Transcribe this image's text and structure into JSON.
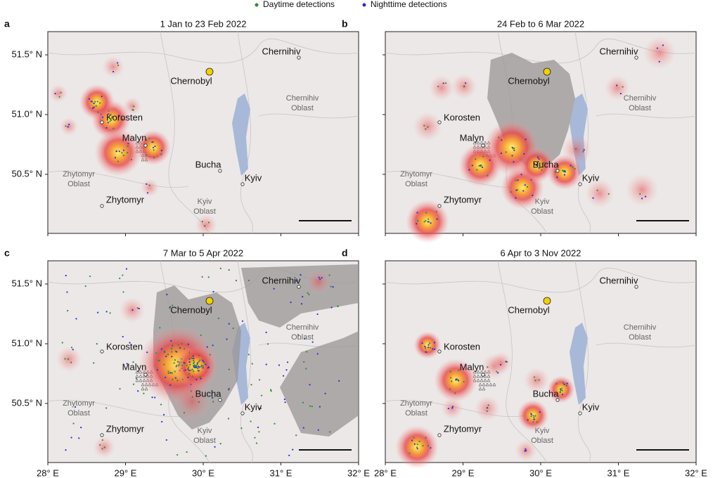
{
  "legend": [
    {
      "label": "Daytime detections",
      "color": "#2e8b2e"
    },
    {
      "label": "Nighttime detections",
      "color": "#2b2bd6"
    }
  ],
  "panels": [
    {
      "label": "a",
      "title": "1 Jan to 23 Feb 2022"
    },
    {
      "label": "b",
      "title": "24 Feb to 6 Mar 2022"
    },
    {
      "label": "c",
      "title": "7 Mar to 5 Apr 2022"
    },
    {
      "label": "d",
      "title": "6 Apr to 3 Nov 2022"
    }
  ],
  "lat_ticks": [
    "51.5° N",
    "51.0° N",
    "50.5° N"
  ],
  "lon_ticks": [
    "28° E",
    "29° E",
    "30° E",
    "31° E",
    "32° E"
  ],
  "places": [
    {
      "lines": [
        "Chernihiv"
      ]
    },
    {
      "lines": [
        "Chernobyl"
      ]
    },
    {
      "lines": [
        "Chernihiv",
        "Oblast"
      ]
    },
    {
      "lines": [
        "Korosten"
      ]
    },
    {
      "lines": [
        "Malyn"
      ]
    },
    {
      "lines": [
        "Zhytomyr",
        "Oblast"
      ]
    },
    {
      "lines": [
        "Bucha"
      ]
    },
    {
      "lines": [
        "Kyiv"
      ]
    },
    {
      "lines": [
        "Zhytomyr"
      ]
    },
    {
      "lines": [
        "Kyiv",
        "Oblast"
      ]
    }
  ]
}
